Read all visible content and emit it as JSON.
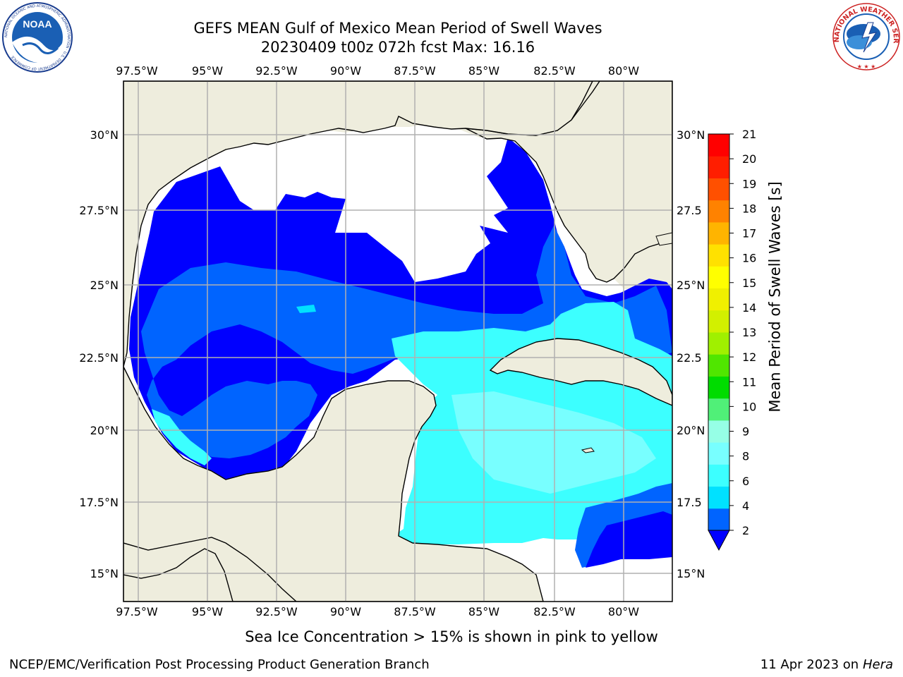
{
  "header": {
    "title_line1": "GEFS MEAN Gulf of Mexico Mean Period of Swell Waves",
    "title_line2": "20230409 t00z 072h fcst   Max: 16.16"
  },
  "logos": {
    "noaa": {
      "text": "NOAA",
      "ring_text": "NATIONAL OCEANIC AND ATMOSPHERIC ADMINISTRATION · U.S. DEPARTMENT OF COMMERCE"
    },
    "nws": {
      "ring_text": "NATIONAL WEATHER SERVICE"
    }
  },
  "map": {
    "lon_ticks": [
      "97.5°W",
      "95°W",
      "92.5°W",
      "90°W",
      "87.5°W",
      "85°W",
      "82.5°W",
      "80°W"
    ],
    "lat_ticks_left": [
      "30°N",
      "27.5°N",
      "25°N",
      "22.5°N",
      "20°N",
      "17.5°N",
      "15°N"
    ],
    "lat_ticks_right": [
      "30°N",
      "27.5",
      "25°N",
      "22.5",
      "20°N",
      "17.5",
      "15°N"
    ],
    "colors": {
      "land": "#eeeddd",
      "grid": "#b0b0b0",
      "no_data": "#ffffff"
    }
  },
  "colorbar": {
    "label": "Mean Period of Swell Waves [s]",
    "ticks": [
      "21",
      "20",
      "19",
      "18",
      "17",
      "16",
      "15",
      "14",
      "13",
      "12",
      "11",
      "10",
      "9",
      "8",
      "6",
      "4",
      "2"
    ],
    "colors_bottom_to_top": [
      "#0064ff",
      "#00e1ff",
      "#3cffff",
      "#78ffff",
      "#96ffe6",
      "#50f078",
      "#00dc00",
      "#50e600",
      "#a0f000",
      "#d2f000",
      "#f0f000",
      "#ffff00",
      "#ffe100",
      "#ffb400",
      "#ff8200",
      "#ff5000",
      "#ff1e00",
      "#ff0000"
    ],
    "extend_color": "#0000ff"
  },
  "footer": {
    "note": "Sea Ice Concentration > 15% is shown in pink to yellow",
    "left": "NCEP/EMC/Verification Post Processing Product Generation Branch",
    "right_prefix": "11 Apr 2023 on ",
    "right_host": "Hera"
  }
}
